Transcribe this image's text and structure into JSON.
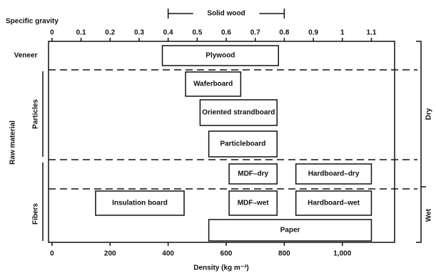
{
  "chart_data": {
    "type": "range",
    "x_label": "Density (kg m⁻³)",
    "x2_label": "Specific gravity",
    "xlim": [
      -12,
      1180
    ],
    "xticks": [
      0,
      200,
      400,
      600,
      800,
      {
        "value": 1000,
        "label": "1,000"
      }
    ],
    "x2lim": [
      -0.012,
      1.18
    ],
    "x2ticks": [
      0,
      0.1,
      0.2,
      0.3,
      0.4,
      0.5,
      0.6,
      0.7,
      0.8,
      0.9,
      1.0,
      1.1
    ],
    "solid_wood": {
      "label": "Solid wood",
      "range": [
        0.4,
        0.8
      ]
    },
    "raw_material": {
      "title": "Raw material",
      "groups": [
        "Veneer",
        "Particles",
        "Fibers"
      ]
    },
    "process": {
      "groups": [
        "Dry",
        "Wet"
      ]
    },
    "bars": [
      {
        "label": "Plywood",
        "range": [
          380,
          780
        ]
      },
      {
        "label": "Waferboard",
        "range": [
          460,
          650
        ]
      },
      {
        "label": "Oriented strandboard",
        "range": [
          510,
          775
        ]
      },
      {
        "label": "Particleboard",
        "range": [
          540,
          775
        ]
      },
      {
        "label": "MDF–dry",
        "range": [
          610,
          775
        ]
      },
      {
        "label": "Hardboard–dry",
        "range": [
          840,
          1100
        ]
      },
      {
        "label": "Insulation board",
        "range": [
          150,
          455
        ]
      },
      {
        "label": "MDF–wet",
        "range": [
          610,
          775
        ]
      },
      {
        "label": "Hardboard–wet",
        "range": [
          840,
          1100
        ]
      },
      {
        "label": "Paper",
        "range": [
          540,
          1100
        ]
      }
    ]
  }
}
